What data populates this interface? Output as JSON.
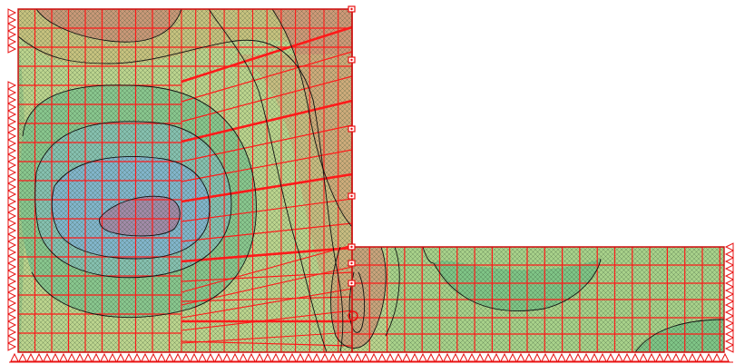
{
  "view": {
    "kind": "finite-element contour plot",
    "colors": {
      "background": "#ffffff",
      "mesh": "#ff1a1a",
      "contour": "#111111",
      "hatch": "#2e4a2e",
      "support": "#e81010",
      "band_low": "#7fb5c8",
      "band_mid_low": "#8cc88c",
      "band_mid": "#c2d890",
      "band_mid_high": "#d8c080",
      "band_high": "#cc8f7c",
      "band_core": "#a88aa5"
    },
    "icons": [
      "fixed-support-triangle-icon",
      "node-marker-icon"
    ]
  }
}
